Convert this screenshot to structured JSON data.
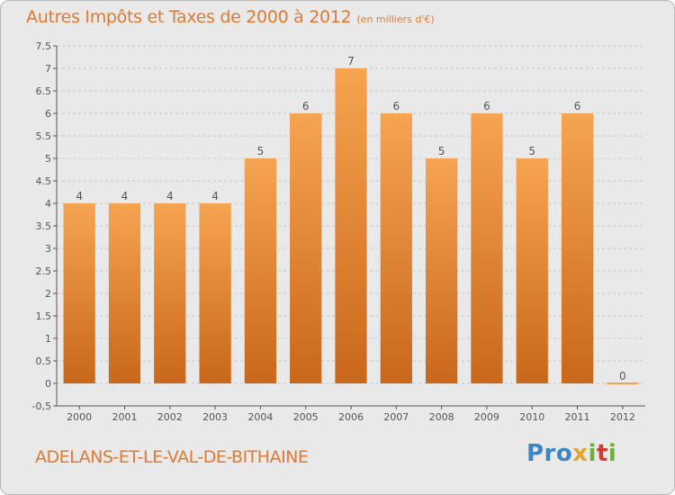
{
  "title": "Autres Impôts et Taxes de 2000 à 2012",
  "unit": "(en milliers d'€)",
  "commune": "ADELANS-ET-LE-VAL-DE-BITHAINE",
  "logo": {
    "p1": "Pro",
    "p2": "x",
    "p3": "i",
    "p4": "t",
    "p5": "i"
  },
  "colors": {
    "bar_top": "#f6a452",
    "bar_bottom": "#c9671b",
    "title": "#e07a32",
    "background": "#e9e9e9"
  },
  "chart_data": {
    "type": "bar",
    "categories": [
      "2000",
      "2001",
      "2002",
      "2003",
      "2004",
      "2005",
      "2006",
      "2007",
      "2008",
      "2009",
      "2010",
      "2011",
      "2012"
    ],
    "values": [
      4,
      4,
      4,
      4,
      5,
      6,
      7,
      6,
      5,
      6,
      5,
      6,
      0
    ],
    "value_labels": [
      "4",
      "4",
      "4",
      "4",
      "5",
      "6",
      "7",
      "6",
      "5",
      "6",
      "5",
      "6",
      "0"
    ],
    "ylim": [
      -0.5,
      7.5
    ],
    "yticks": [
      "-0,5",
      "0",
      "0.5",
      "1",
      "1.5",
      "2",
      "2.5",
      "3",
      "3.5",
      "4",
      "4.5",
      "5",
      "5.5",
      "6",
      "6.5",
      "7",
      "7.5"
    ],
    "grid": true
  }
}
